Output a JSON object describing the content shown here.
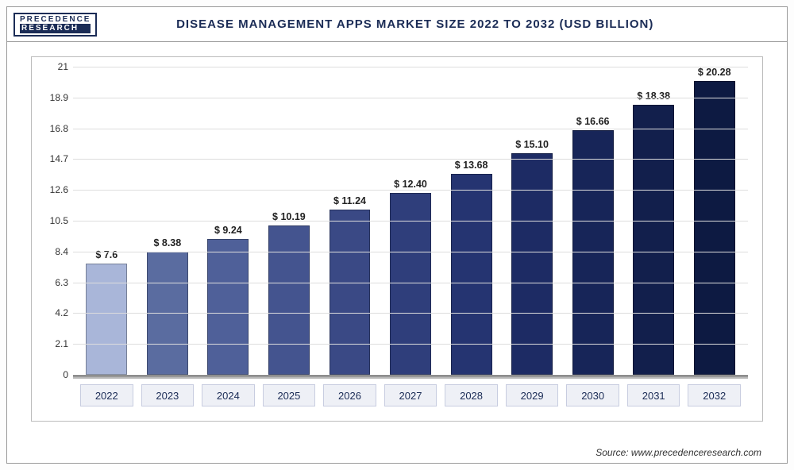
{
  "logo": {
    "top": "PRECEDENCE",
    "bottom": "RESEARCH"
  },
  "title": "DISEASE MANAGEMENT APPS MARKET SIZE 2022 TO 2032 (USD BILLION)",
  "source": "Source: www.precedenceresearch.com",
  "chart": {
    "type": "bar",
    "ylim": [
      0,
      21
    ],
    "ytick_step": 2.1,
    "yticks": [
      0,
      2.1,
      4.2,
      6.3,
      8.4,
      10.5,
      12.6,
      14.7,
      16.8,
      18.9,
      21
    ],
    "grid_color": "#dddddd",
    "background_color": "#ffffff",
    "title_fontsize": 15,
    "label_fontsize": 12,
    "value_prefix": "$ ",
    "categories": [
      "2022",
      "2023",
      "2024",
      "2025",
      "2026",
      "2027",
      "2028",
      "2029",
      "2030",
      "2031",
      "2032"
    ],
    "values": [
      7.6,
      8.38,
      9.24,
      10.19,
      11.24,
      12.4,
      13.68,
      15.1,
      16.66,
      18.38,
      20.28
    ],
    "value_labels": [
      "$ 7.6",
      "$ 8.38",
      "$ 9.24",
      "$ 10.19",
      "$ 11.24",
      "$ 12.40",
      "$ 13.68",
      "$ 15.10",
      "$ 16.66",
      "$ 18.38",
      "$ 20.28"
    ],
    "bar_colors": [
      "#a9b6d9",
      "#5a6ca0",
      "#4f6099",
      "#44548f",
      "#3a4985",
      "#2f3e7b",
      "#253471",
      "#1d2b64",
      "#172558",
      "#121f4c",
      "#0d1a42"
    ],
    "bar_width": 0.78
  }
}
